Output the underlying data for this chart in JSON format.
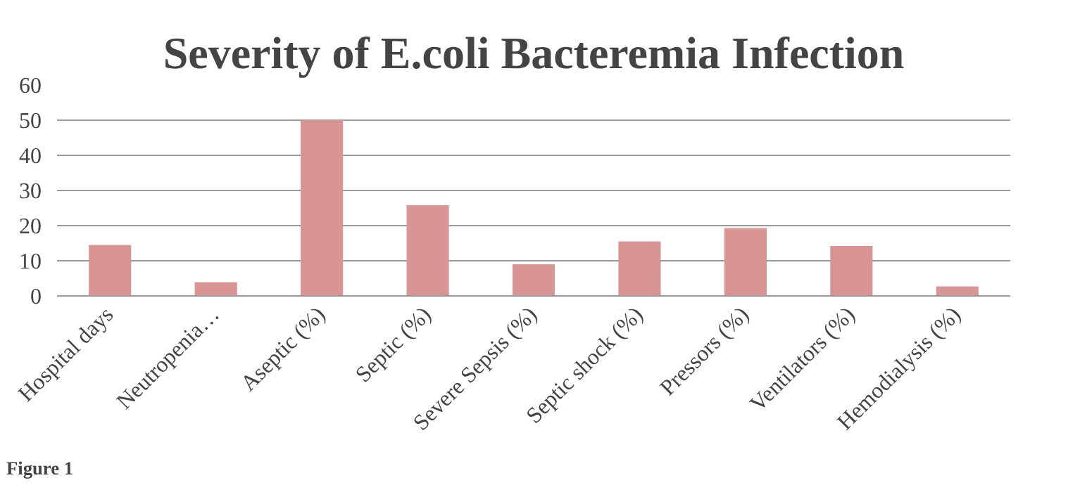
{
  "chart_data": {
    "type": "bar",
    "title": "Severity of E.coli Bacteremia Infection",
    "categories": [
      "Hospital days",
      "Neutropenia…",
      "Aseptic (%)",
      "Septic (%)",
      "Severe Sepsis (%)",
      "Septic shock (%)",
      "Pressors (%)",
      "Ventilators (%)",
      "Hemodialysis (%)"
    ],
    "values": [
      14.5,
      3.9,
      50,
      25.8,
      9,
      15.5,
      19.3,
      14.2,
      2.7
    ],
    "color": "#d99594",
    "ylim": [
      0,
      60
    ],
    "yticks": [
      0,
      10,
      20,
      30,
      40,
      50,
      60
    ],
    "grid": "y",
    "annotations": [
      "Figure 1"
    ]
  }
}
